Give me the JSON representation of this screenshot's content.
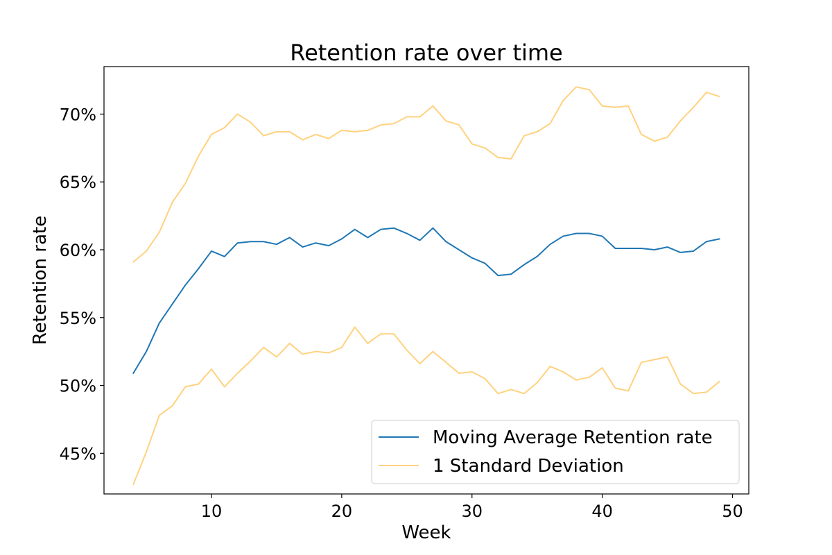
{
  "chart_data": {
    "type": "line",
    "title": "Retention rate over time",
    "xlabel": "Week",
    "ylabel": "Retention rate",
    "xlim": [
      1.75,
      51.25
    ],
    "ylim": [
      0.42,
      0.735
    ],
    "xticks": [
      10,
      20,
      30,
      40,
      50
    ],
    "xtick_labels": [
      "10",
      "20",
      "30",
      "40",
      "50"
    ],
    "yticks": [
      0.45,
      0.5,
      0.55,
      0.6,
      0.65,
      0.7
    ],
    "ytick_labels": [
      "45%",
      "50%",
      "55%",
      "60%",
      "65%",
      "70%"
    ],
    "grid": false,
    "legend_position": "lower-right",
    "x": [
      4,
      5,
      6,
      7,
      8,
      9,
      10,
      11,
      12,
      13,
      14,
      15,
      16,
      17,
      18,
      19,
      20,
      21,
      22,
      23,
      24,
      25,
      26,
      27,
      28,
      29,
      30,
      31,
      32,
      33,
      34,
      35,
      36,
      37,
      38,
      39,
      40,
      41,
      42,
      43,
      44,
      45,
      46,
      47,
      48,
      49
    ],
    "series": [
      {
        "name": "Moving Average Retention rate",
        "color": "#1f77b4",
        "values": [
          0.509,
          0.525,
          0.546,
          0.56,
          0.574,
          0.586,
          0.599,
          0.595,
          0.605,
          0.606,
          0.606,
          0.604,
          0.609,
          0.602,
          0.605,
          0.603,
          0.608,
          0.615,
          0.609,
          0.615,
          0.616,
          0.612,
          0.607,
          0.616,
          0.606,
          0.6,
          0.594,
          0.59,
          0.581,
          0.582,
          0.589,
          0.595,
          0.604,
          0.61,
          0.612,
          0.612,
          0.61,
          0.601,
          0.601,
          0.601,
          0.6,
          0.602,
          0.598,
          0.599,
          0.606,
          0.608
        ]
      },
      {
        "name": "1 Standard Deviation",
        "color": "#ffd27f",
        "values": [
          0.591,
          0.599,
          0.613,
          0.635,
          0.649,
          0.669,
          0.685,
          0.69,
          0.7,
          0.694,
          0.684,
          0.687,
          0.687,
          0.681,
          0.685,
          0.682,
          0.688,
          0.687,
          0.688,
          0.692,
          0.693,
          0.698,
          0.698,
          0.706,
          0.695,
          0.692,
          0.678,
          0.675,
          0.668,
          0.667,
          0.684,
          0.687,
          0.693,
          0.71,
          0.72,
          0.718,
          0.706,
          0.705,
          0.706,
          0.685,
          0.68,
          0.683,
          0.695,
          0.705,
          0.716,
          0.713
        ]
      },
      {
        "name": "",
        "color": "#ffd27f",
        "values": [
          0.427,
          0.451,
          0.478,
          0.485,
          0.499,
          0.501,
          0.512,
          0.499,
          0.509,
          0.518,
          0.528,
          0.521,
          0.531,
          0.523,
          0.525,
          0.524,
          0.528,
          0.543,
          0.531,
          0.538,
          0.538,
          0.526,
          0.516,
          0.525,
          0.517,
          0.509,
          0.51,
          0.505,
          0.494,
          0.497,
          0.494,
          0.502,
          0.514,
          0.51,
          0.504,
          0.506,
          0.513,
          0.498,
          0.496,
          0.517,
          0.519,
          0.521,
          0.501,
          0.494,
          0.495,
          0.503
        ]
      }
    ],
    "legend": [
      {
        "label": "Moving Average Retention rate",
        "color": "#1f77b4"
      },
      {
        "label": "1 Standard Deviation",
        "color": "#ffd27f"
      }
    ]
  }
}
